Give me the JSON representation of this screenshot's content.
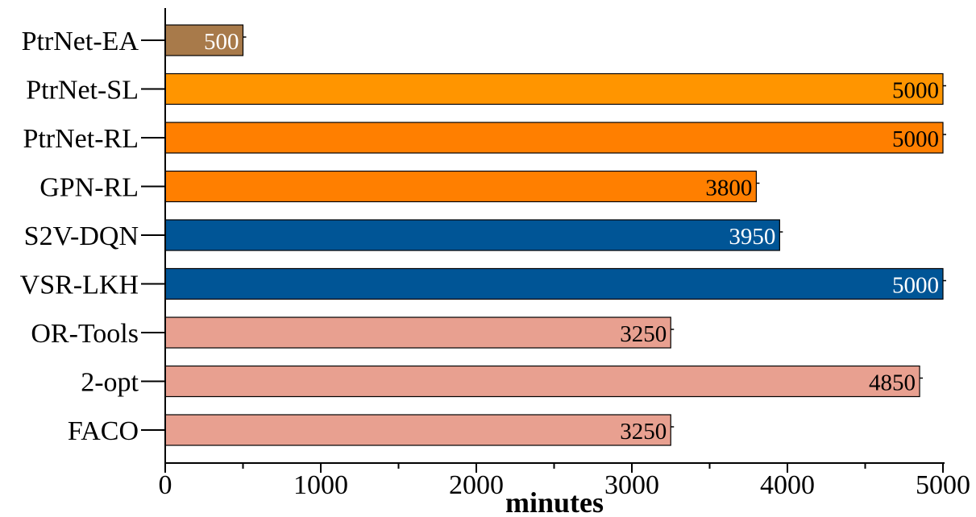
{
  "chart_data": {
    "type": "bar",
    "orientation": "horizontal",
    "categories": [
      "PtrNet-EA",
      "PtrNet-SL",
      "PtrNet-RL",
      "GPN-RL",
      "S2V-DQN",
      "VSR-LKH",
      "OR-Tools",
      "2-opt",
      "FACO"
    ],
    "values": [
      500,
      5000,
      5000,
      3800,
      3950,
      5000,
      3250,
      4850,
      3250
    ],
    "data_labels": [
      "500",
      "5000",
      "5000",
      "3800",
      "3950",
      "5000",
      "3250",
      "4850",
      "3250"
    ],
    "bar_colors": [
      "#a87a4a",
      "#ff9500",
      "#ff7f00",
      "#ff7f00",
      "#005596",
      "#005596",
      "#e8a090",
      "#e8a090",
      "#e8a090"
    ],
    "label_colors": [
      "#ffffff",
      "#000000",
      "#000000",
      "#000000",
      "#ffffff",
      "#ffffff",
      "#000000",
      "#000000",
      "#000000"
    ],
    "xlabel": "minutes",
    "xlim": [
      0,
      5000
    ],
    "xticks": [
      0,
      1000,
      2000,
      3000,
      4000,
      5000
    ],
    "xtick_labels": [
      "0",
      "1000",
      "2000",
      "3000",
      "4000",
      "5000"
    ],
    "grid": false,
    "legend": "none"
  }
}
